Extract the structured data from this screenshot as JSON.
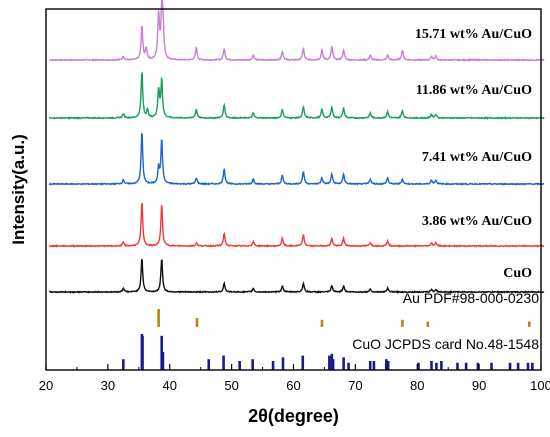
{
  "chart_data": {
    "type": "line",
    "title": "",
    "xlabel": "2θ(degree)",
    "ylabel": "Intensity(a.u.)",
    "xlim": [
      20,
      100
    ],
    "x_ticks": [
      "20",
      "30",
      "40",
      "50",
      "60",
      "70",
      "80",
      "90",
      "100"
    ],
    "grid": false,
    "legend": "labels-right-of-traces",
    "series": [
      {
        "name": "15.71 wt% Au/CuO",
        "color": "#c77fd6",
        "peaks": [
          [
            32.5,
            6
          ],
          [
            35.5,
            55
          ],
          [
            36.2,
            18
          ],
          [
            38.2,
            72
          ],
          [
            38.7,
            70
          ],
          [
            38.9,
            55
          ],
          [
            44.3,
            20
          ],
          [
            48.8,
            18
          ],
          [
            53.5,
            8
          ],
          [
            58.2,
            14
          ],
          [
            61.6,
            18
          ],
          [
            64.6,
            16
          ],
          [
            66.2,
            22
          ],
          [
            68.1,
            16
          ],
          [
            72.4,
            8
          ],
          [
            75.2,
            8
          ],
          [
            77.6,
            16
          ],
          [
            82.3,
            6
          ],
          [
            83.0,
            6
          ]
        ]
      },
      {
        "name": "11.86 wt% Au/CuO",
        "color": "#17a05d",
        "peaks": [
          [
            32.5,
            7
          ],
          [
            35.5,
            75
          ],
          [
            36.4,
            12
          ],
          [
            38.2,
            45
          ],
          [
            38.7,
            62
          ],
          [
            44.3,
            14
          ],
          [
            48.8,
            22
          ],
          [
            53.5,
            8
          ],
          [
            58.2,
            14
          ],
          [
            61.6,
            18
          ],
          [
            64.6,
            14
          ],
          [
            66.2,
            18
          ],
          [
            68.1,
            16
          ],
          [
            72.4,
            8
          ],
          [
            75.2,
            10
          ],
          [
            77.6,
            12
          ],
          [
            82.3,
            6
          ],
          [
            83.0,
            6
          ]
        ]
      },
      {
        "name": "7.41 wt% Au/CuO",
        "color": "#1e64c8",
        "peaks": [
          [
            32.5,
            7
          ],
          [
            35.5,
            85
          ],
          [
            38.2,
            25
          ],
          [
            38.7,
            72
          ],
          [
            44.3,
            10
          ],
          [
            48.8,
            25
          ],
          [
            53.5,
            8
          ],
          [
            58.2,
            14
          ],
          [
            61.6,
            20
          ],
          [
            64.6,
            10
          ],
          [
            66.2,
            16
          ],
          [
            68.1,
            16
          ],
          [
            72.4,
            8
          ],
          [
            75.2,
            10
          ],
          [
            77.6,
            8
          ],
          [
            82.3,
            6
          ],
          [
            83.0,
            6
          ]
        ]
      },
      {
        "name": "3.86 wt% Au/CuO",
        "color": "#ee3b3b",
        "peaks": [
          [
            32.5,
            6
          ],
          [
            35.5,
            72
          ],
          [
            38.7,
            68
          ],
          [
            44.3,
            5
          ],
          [
            48.8,
            20
          ],
          [
            53.5,
            7
          ],
          [
            58.2,
            12
          ],
          [
            61.6,
            18
          ],
          [
            66.2,
            12
          ],
          [
            68.1,
            12
          ],
          [
            72.4,
            6
          ],
          [
            75.2,
            8
          ],
          [
            82.3,
            5
          ],
          [
            83.0,
            5
          ]
        ]
      },
      {
        "name": "CuO",
        "color": "#111111",
        "peaks": [
          [
            32.5,
            6
          ],
          [
            35.5,
            55
          ],
          [
            38.7,
            55
          ],
          [
            48.8,
            14
          ],
          [
            53.5,
            6
          ],
          [
            58.2,
            10
          ],
          [
            61.6,
            14
          ],
          [
            66.2,
            10
          ],
          [
            68.1,
            10
          ],
          [
            72.4,
            5
          ],
          [
            75.2,
            6
          ],
          [
            82.3,
            4
          ],
          [
            83.0,
            4
          ]
        ]
      }
    ],
    "references": [
      {
        "name": "Au PDF#98-000-0230",
        "color": "#b8860b",
        "positions": [
          38.2,
          44.4,
          64.6,
          77.6,
          81.7,
          98.1
        ],
        "intensities": [
          1.0,
          0.5,
          0.4,
          0.4,
          0.3,
          0.3
        ]
      },
      {
        "name": "CuO JCPDS card No.48-1548",
        "color": "#1a1a8c",
        "positions": [
          32.5,
          35.5,
          35.6,
          38.7,
          38.9,
          46.3,
          48.7,
          51.3,
          53.4,
          56.7,
          58.3,
          61.5,
          65.8,
          66.2,
          66.4,
          68.1,
          68.9,
          72.4,
          73.0,
          75.0,
          75.3,
          80.2,
          82.3,
          83.1,
          83.9,
          86.5,
          87.9,
          89.8,
          92.0,
          95.0,
          96.3,
          97.9,
          98.6
        ],
        "intensities": [
          0.3,
          1.0,
          0.95,
          0.95,
          0.5,
          0.3,
          0.4,
          0.25,
          0.3,
          0.25,
          0.35,
          0.4,
          0.4,
          0.45,
          0.3,
          0.35,
          0.2,
          0.25,
          0.25,
          0.3,
          0.25,
          0.2,
          0.25,
          0.2,
          0.25,
          0.2,
          0.2,
          0.2,
          0.2,
          0.2,
          0.2,
          0.2,
          0.2
        ]
      }
    ],
    "label_positions_note": ""
  }
}
